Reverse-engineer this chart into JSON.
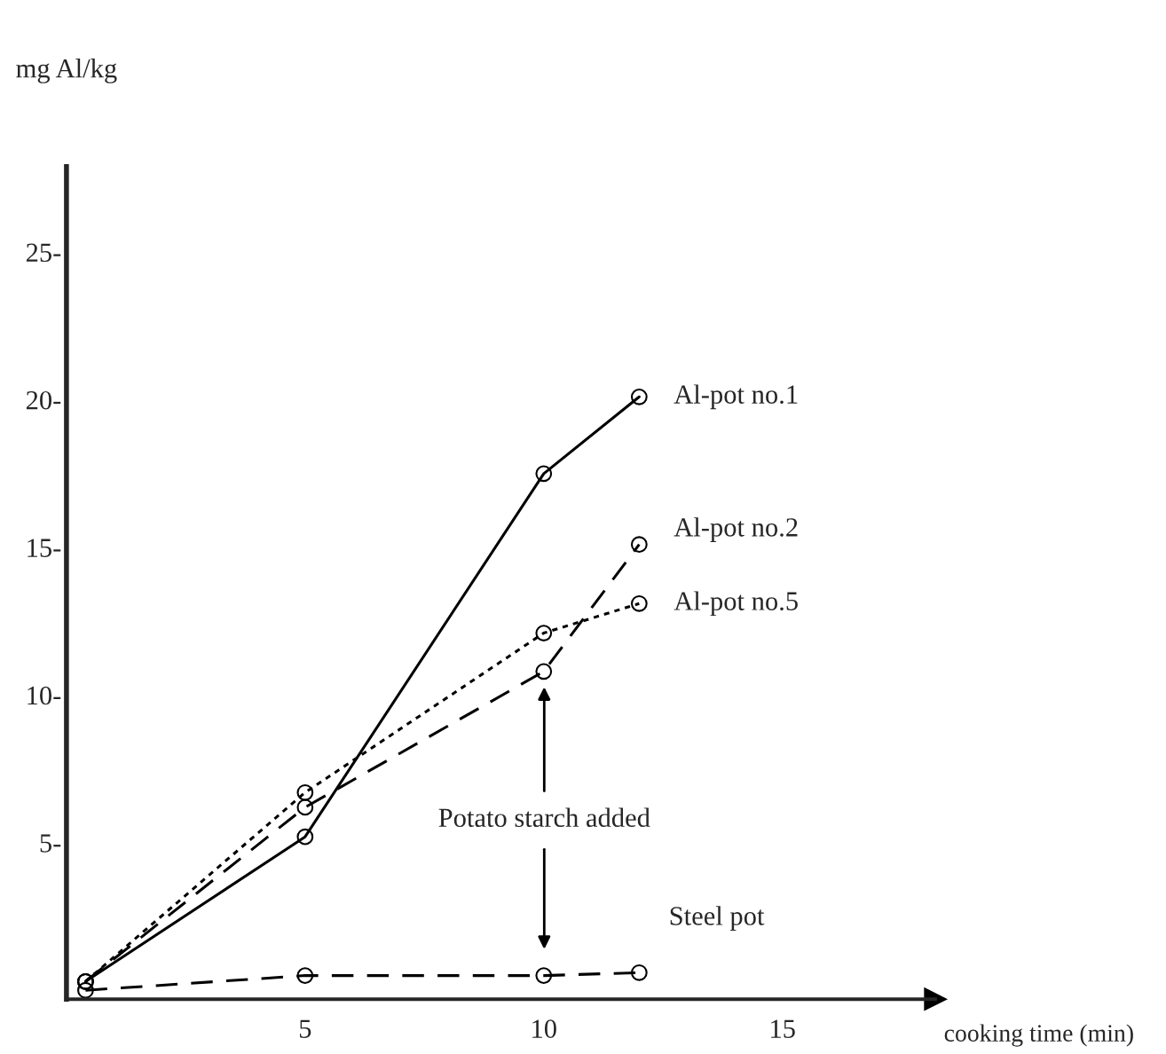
{
  "chart_data": {
    "type": "line",
    "xlabel": "cooking time (min)",
    "ylabel": "mg Al/kg",
    "xlim": [
      0,
      18.2
    ],
    "ylim": [
      -0.3,
      27.9
    ],
    "xticks": [
      5,
      10,
      15
    ],
    "yticks": [
      {
        "value": 5,
        "label": "5-"
      },
      {
        "value": 10,
        "label": "10-"
      },
      {
        "value": 15,
        "label": "15-"
      },
      {
        "value": 20,
        "label": "20-"
      },
      {
        "value": 25,
        "label": "25-"
      }
    ],
    "x": [
      0.4,
      5,
      10,
      12
    ],
    "marker": "circle",
    "grid": false,
    "legend": false,
    "series": [
      {
        "name": "Al-pot no.1",
        "color": "#000000",
        "line_style": "solid",
        "values": [
          0.3,
          5.2,
          17.5,
          20.1
        ]
      },
      {
        "name": "Al-pot no.2",
        "color": "#000000",
        "line_style": "dashed",
        "values": [
          0.3,
          6.2,
          10.8,
          15.1
        ]
      },
      {
        "name": "Al-pot no.5",
        "color": "#000000",
        "line_style": "dotted",
        "values": [
          0.3,
          6.7,
          12.1,
          13.1
        ]
      },
      {
        "name": "Steel pot",
        "color": "#000000",
        "line_style": "dashed",
        "values": [
          0.0,
          0.5,
          0.5,
          0.6
        ]
      }
    ],
    "annotations": [
      "Potato starch added"
    ]
  }
}
